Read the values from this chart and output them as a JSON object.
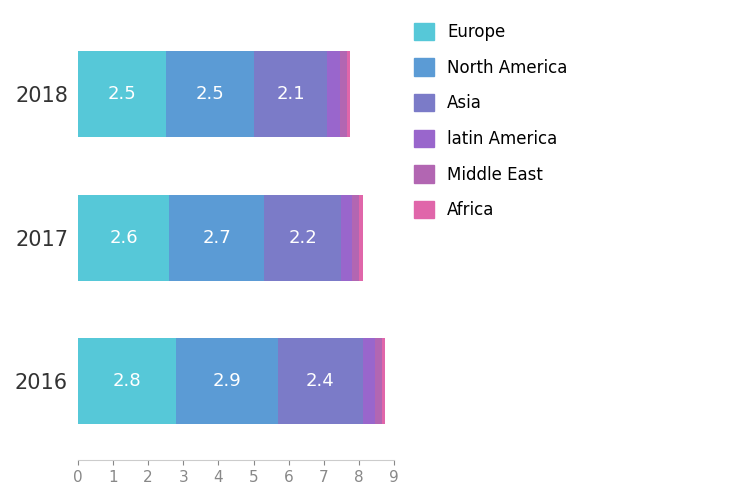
{
  "years": [
    "2016",
    "2017",
    "2018"
  ],
  "categories": [
    "Europe",
    "North America",
    "Asia",
    "latin America",
    "Middle East",
    "Africa"
  ],
  "values": {
    "Europe": [
      2.5,
      2.6,
      2.8
    ],
    "North America": [
      2.5,
      2.7,
      2.9
    ],
    "Asia": [
      2.1,
      2.2,
      2.4
    ],
    "latin America": [
      0.35,
      0.3,
      0.35
    ],
    "Middle East": [
      0.2,
      0.2,
      0.2
    ],
    "Africa": [
      0.1,
      0.1,
      0.1
    ]
  },
  "colors": {
    "Europe": "#56C8D8",
    "North America": "#5B9BD5",
    "Asia": "#7B7BC8",
    "latin America": "#9966CC",
    "Middle East": "#B266B2",
    "Africa": "#E066AA"
  },
  "label_categories": [
    "Europe",
    "North America",
    "Asia"
  ],
  "xlim": [
    0,
    9
  ],
  "xticks": [
    0,
    1,
    2,
    3,
    4,
    5,
    6,
    7,
    8,
    9
  ],
  "bar_height": 0.6,
  "background_color": "#ffffff",
  "label_fontsize": 13,
  "tick_fontsize": 11,
  "ytick_fontsize": 15,
  "legend_fontsize": 12
}
